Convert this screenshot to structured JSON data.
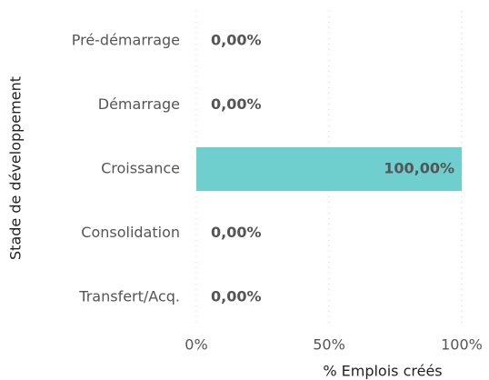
{
  "chart_data": {
    "type": "hbar",
    "categories": [
      "Pré-démarrage",
      "Démarrage",
      "Croissance",
      "Consolidation",
      "Transfert/Acq."
    ],
    "values": [
      0,
      0,
      100,
      0,
      0
    ],
    "value_labels": [
      "0,00%",
      "0,00%",
      "100,00%",
      "0,00%",
      "0,00%"
    ],
    "color": "#6fcfcf",
    "xlim": [
      0,
      100
    ],
    "xticks": [
      {
        "value": 0,
        "label": "0%"
      },
      {
        "value": 50,
        "label": "50%"
      },
      {
        "value": 100,
        "label": "100%"
      }
    ],
    "xlabel": "% Emplois créés",
    "ylabel": "Stade de développement",
    "grid": true
  }
}
